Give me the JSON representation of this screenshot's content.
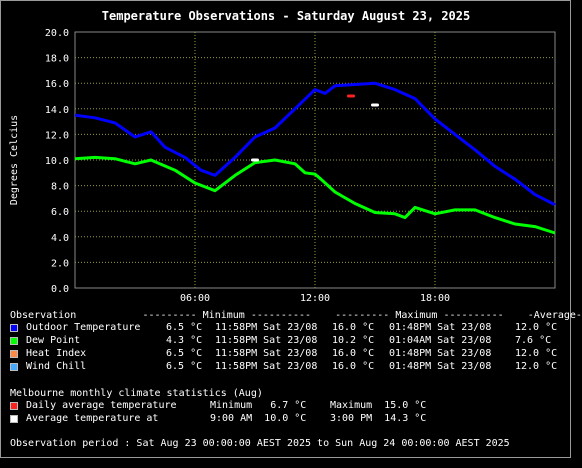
{
  "chart_data": {
    "type": "line",
    "title": "Temperature Observations - Saturday August 23, 2025",
    "ylabel": "Degrees Celcius",
    "xlabel": "",
    "ylim": [
      0,
      20
    ],
    "yticks": [
      "0.0",
      "2.0",
      "4.0",
      "6.0",
      "8.0",
      "10.0",
      "12.0",
      "14.0",
      "16.0",
      "18.0",
      "20.0"
    ],
    "xlim": [
      0,
      24
    ],
    "xticks": [
      {
        "h": 6,
        "label": "06:00"
      },
      {
        "h": 12,
        "label": "12:00"
      },
      {
        "h": 18,
        "label": "18:00"
      }
    ],
    "grid": true,
    "series": [
      {
        "name": "Outdoor Temperature",
        "color": "#0000ff",
        "points": [
          [
            0,
            13.5
          ],
          [
            1,
            13.3
          ],
          [
            2,
            12.9
          ],
          [
            3,
            11.8
          ],
          [
            3.8,
            12.2
          ],
          [
            4.5,
            11.0
          ],
          [
            5.5,
            10.2
          ],
          [
            6.3,
            9.2
          ],
          [
            7,
            8.8
          ],
          [
            8,
            10.2
          ],
          [
            9,
            11.8
          ],
          [
            10,
            12.5
          ],
          [
            11,
            14.0
          ],
          [
            12,
            15.5
          ],
          [
            12.5,
            15.2
          ],
          [
            13,
            15.8
          ],
          [
            14,
            15.9
          ],
          [
            15,
            16.0
          ],
          [
            16,
            15.5
          ],
          [
            17,
            14.8
          ],
          [
            17.5,
            14.0
          ],
          [
            18,
            13.2
          ],
          [
            19,
            12.0
          ],
          [
            20,
            10.8
          ],
          [
            21,
            9.5
          ],
          [
            22,
            8.5
          ],
          [
            23,
            7.3
          ],
          [
            24,
            6.5
          ]
        ]
      },
      {
        "name": "Dew Point",
        "color": "#00ff00",
        "points": [
          [
            0,
            10.1
          ],
          [
            1,
            10.2
          ],
          [
            2,
            10.1
          ],
          [
            3,
            9.7
          ],
          [
            3.8,
            10.0
          ],
          [
            5,
            9.2
          ],
          [
            6,
            8.2
          ],
          [
            7,
            7.6
          ],
          [
            8,
            8.8
          ],
          [
            9,
            9.8
          ],
          [
            10,
            10.0
          ],
          [
            11,
            9.7
          ],
          [
            11.5,
            9.0
          ],
          [
            12,
            8.9
          ],
          [
            12.3,
            8.5
          ],
          [
            13,
            7.5
          ],
          [
            14,
            6.6
          ],
          [
            15,
            5.9
          ],
          [
            16,
            5.8
          ],
          [
            16.5,
            5.5
          ],
          [
            17,
            6.3
          ],
          [
            18,
            5.8
          ],
          [
            19,
            6.1
          ],
          [
            20,
            6.1
          ],
          [
            21,
            5.5
          ],
          [
            22,
            5.0
          ],
          [
            23,
            4.8
          ],
          [
            24,
            4.3
          ]
        ]
      }
    ],
    "climate_markers": [
      {
        "name": "Daily average temperature",
        "color": "#ff2020",
        "h": 13.8,
        "value": 15.0
      },
      {
        "name": "Average temperature at",
        "color": "#ffffff",
        "h": 15.0,
        "value": 14.3
      },
      {
        "name": "Average temperature at",
        "color": "#ffffff",
        "h": 9.0,
        "value": 10.0
      }
    ]
  },
  "stats": {
    "header": "Observation           --------- Minimum ----------    --------- Maximum ----------    -Average-",
    "rows": [
      {
        "color": "#0000ff",
        "label": "Outdoor Temperature",
        "min": "6.5 °C",
        "min_at": "11:58PM Sat 23/08",
        "max": "16.0 °C",
        "max_at": "01:48PM Sat 23/08",
        "avg": "12.0 °C"
      },
      {
        "color": "#00ff00",
        "label": "Dew Point",
        "min": "4.3 °C",
        "min_at": "11:58PM Sat 23/08",
        "max": "10.2 °C",
        "max_at": "01:04AM Sat 23/08",
        "avg": "7.6 °C"
      },
      {
        "color": "#ff8844",
        "label": "Heat Index",
        "min": "6.5 °C",
        "min_at": "11:58PM Sat 23/08",
        "max": "16.0 °C",
        "max_at": "01:48PM Sat 23/08",
        "avg": "12.0 °C"
      },
      {
        "color": "#44aaff",
        "label": "Wind Chill",
        "min": "6.5 °C",
        "min_at": "11:58PM Sat 23/08",
        "max": "16.0 °C",
        "max_at": "01:48PM Sat 23/08",
        "avg": "12.0 °C"
      }
    ]
  },
  "climate": {
    "header": "Melbourne monthly climate statistics (Aug)",
    "row1": {
      "color": "#ff2020",
      "label": "Daily average temperature",
      "a": "Minimum   6.7 °C",
      "b": "Maximum  15.0 °C"
    },
    "row2": {
      "color": "#ffffff",
      "label": "Average temperature at",
      "a": "9:00 AM  10.0 °C",
      "b": "3:00 PM  14.3 °C"
    }
  },
  "period": "Observation period : Sat Aug 23 00:00:00 AEST 2025 to Sun Aug 24 00:00:00 AEST 2025"
}
